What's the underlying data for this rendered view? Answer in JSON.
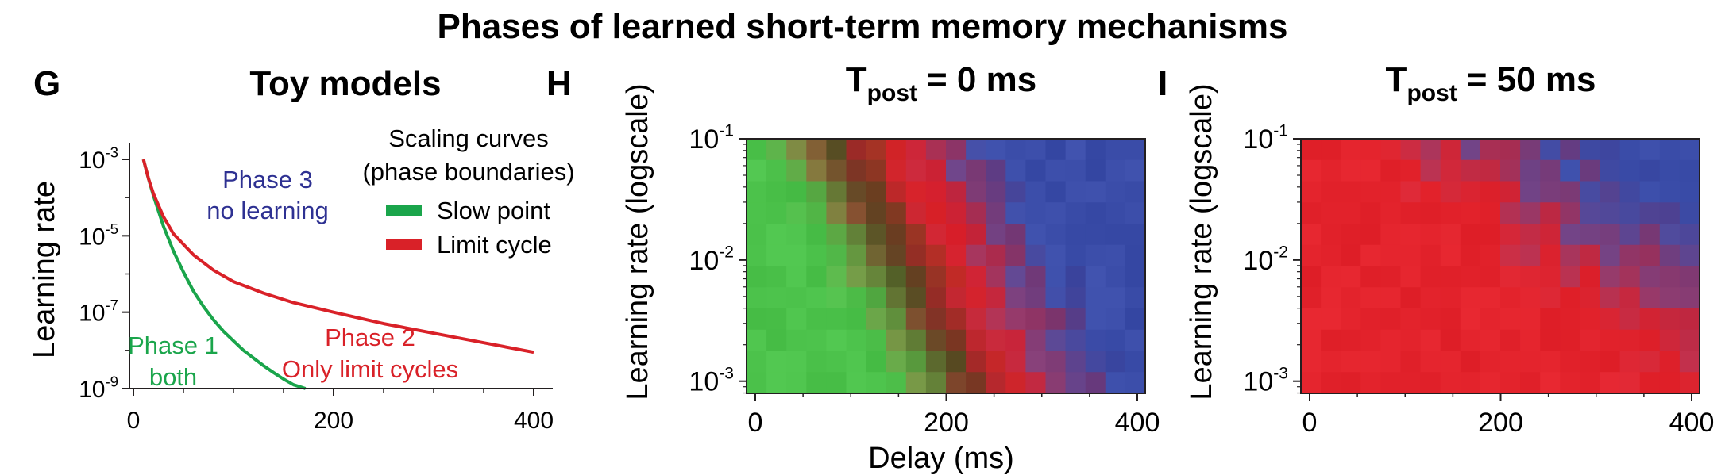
{
  "figure": {
    "title": "Phases of learned short-term memory mechanisms"
  },
  "chart_data": [
    {
      "panel": "G",
      "type": "line",
      "title": "Toy models",
      "xlabel": "",
      "ylabel": "Learning rate",
      "xlim": [
        0,
        400
      ],
      "ylim_log10": [
        -9,
        -2.5
      ],
      "yscale": "log",
      "x_ticks": [
        0,
        200,
        400
      ],
      "y_ticks": [
        {
          "mantissa": "10",
          "exp": "-3",
          "log10": -3
        },
        {
          "mantissa": "10",
          "exp": "-5",
          "log10": -5
        },
        {
          "mantissa": "10",
          "exp": "-7",
          "log10": -7
        },
        {
          "mantissa": "10",
          "exp": "-9",
          "log10": -9
        }
      ],
      "legend": {
        "title_line1": "Scaling curves",
        "title_line2": "(phase boundaries)",
        "placement": "top-right"
      },
      "series": [
        {
          "name": "Slow point",
          "color": "#1aa54b",
          "x": [
            10,
            15,
            20,
            25,
            30,
            40,
            50,
            60,
            70,
            80,
            90,
            100,
            110,
            120,
            130,
            140,
            150,
            160,
            172
          ],
          "log10_y": [
            -3.0,
            -3.5,
            -3.95,
            -4.35,
            -4.75,
            -5.4,
            -5.95,
            -6.45,
            -6.85,
            -7.2,
            -7.5,
            -7.75,
            -8.0,
            -8.2,
            -8.4,
            -8.58,
            -8.75,
            -8.9,
            -9.0
          ]
        },
        {
          "name": "Limit cycle",
          "color": "#d92128",
          "x": [
            10,
            15,
            20,
            30,
            40,
            60,
            80,
            100,
            130,
            160,
            200,
            250,
            300,
            350,
            400
          ],
          "log10_y": [
            -3.0,
            -3.5,
            -3.9,
            -4.5,
            -4.95,
            -5.5,
            -5.9,
            -6.2,
            -6.5,
            -6.75,
            -7.0,
            -7.3,
            -7.55,
            -7.8,
            -8.05
          ]
        }
      ],
      "annotations": [
        {
          "line1": "Phase 3",
          "line2": "no learning",
          "color": "#2e3192"
        },
        {
          "line1": "Phase 1",
          "line2": "both",
          "color": "#1aa54b"
        },
        {
          "line1": "Phase 2",
          "line2": "Only limit cycles",
          "color": "#d92128"
        }
      ]
    },
    {
      "panel": "H",
      "type": "heatmap",
      "title_main": "T",
      "title_sub": "post",
      "title_rest": "= 0 ms",
      "xlabel": "Delay (ms)",
      "ylabel": "Learning rate (logscale)",
      "xlim": [
        -10,
        410
      ],
      "ylim_log10": [
        -3.1,
        -1.0
      ],
      "x_ticks": [
        0,
        200,
        400
      ],
      "y_ticks": [
        {
          "mantissa": "10",
          "exp": "-1",
          "log10": -1
        },
        {
          "mantissa": "10",
          "exp": "-2",
          "log10": -2
        },
        {
          "mantissa": "10",
          "exp": "-3",
          "log10": -3
        }
      ],
      "grid": {
        "cols": 20,
        "rows": 12,
        "x_start": 0,
        "x_step": 20
      },
      "colormap": {
        "green": "#4cc24b",
        "red": "#e3232c",
        "blue": "#3a4ca8"
      },
      "boundaries": {
        "green_red_x_low_lr": 230,
        "green_red_x_high_lr": 85,
        "red_blue_x_low_lr": 320,
        "red_blue_x_high_lr": 190
      }
    },
    {
      "panel": "I",
      "type": "heatmap",
      "title_main": "T",
      "title_sub": "post",
      "title_rest": "= 50 ms",
      "xlabel": "",
      "ylabel": "Learning rate (logscale)",
      "xlim": [
        -10,
        410
      ],
      "ylim_log10": [
        -3.1,
        -1.0
      ],
      "x_ticks": [
        0,
        200,
        400
      ],
      "y_ticks": [
        {
          "mantissa": "10",
          "exp": "-1",
          "log10": -1
        },
        {
          "mantissa": "10",
          "exp": "-2",
          "log10": -2
        },
        {
          "mantissa": "10",
          "exp": "-3",
          "log10": -3
        }
      ],
      "grid": {
        "cols": 20,
        "rows": 12,
        "x_start": 0,
        "x_step": 20
      },
      "colormap": {
        "green": "#4cc24b",
        "red": "#e3232c",
        "blue": "#3a4ca8"
      },
      "boundaries": {
        "red_blue_x_low_lr": 430,
        "red_blue_x_high_lr": 150
      }
    }
  ]
}
